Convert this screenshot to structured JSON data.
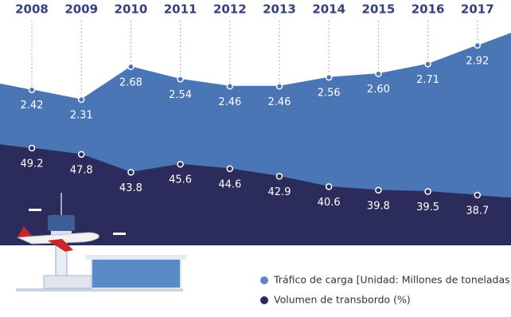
{
  "chart_data": {
    "type": "area",
    "categories": [
      "2008",
      "2009",
      "2010",
      "2011",
      "2012",
      "2013",
      "2014",
      "2015",
      "2016",
      "2017"
    ],
    "series": [
      {
        "name": "Tráfico de carga [Unidad: Millones de toneladas]",
        "color": "#4a76b6",
        "values": [
          2.42,
          2.31,
          2.68,
          2.54,
          2.46,
          2.46,
          2.56,
          2.6,
          2.71,
          2.92
        ],
        "value_labels": [
          "2.42",
          "2.31",
          "2.68",
          "2.54",
          "2.46",
          "2.46",
          "2.56",
          "2.60",
          "2.71",
          "2.92"
        ]
      },
      {
        "name": "Volumen de transbordo (%)",
        "color": "#2b2c5c",
        "values": [
          49.2,
          47.8,
          43.8,
          45.6,
          44.6,
          42.9,
          40.6,
          39.8,
          39.5,
          38.7
        ]
      }
    ]
  }
}
